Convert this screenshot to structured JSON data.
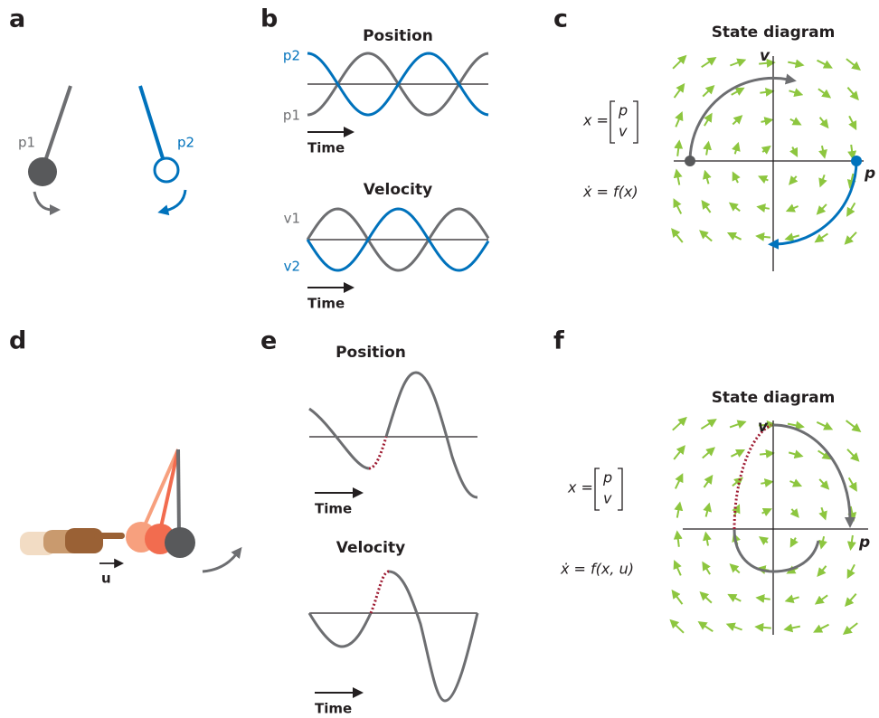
{
  "panels": {
    "a": {
      "label": "a",
      "pendulum_1": "p1",
      "pendulum_2": "p2"
    },
    "b": {
      "label": "b",
      "position": {
        "title": "Position",
        "top": "p2",
        "bottom": "p1",
        "time": "Time"
      },
      "velocity": {
        "title": "Velocity",
        "top": "v1",
        "bottom": "v2",
        "time": "Time"
      }
    },
    "c": {
      "label": "c",
      "title": "State diagram",
      "v_axis": "v",
      "p_axis": "p",
      "state_lhs": "x =",
      "state_top": "p",
      "state_bottom": "v",
      "dynamics": "ẋ = f(x)"
    },
    "d": {
      "label": "d",
      "input": "u"
    },
    "e": {
      "label": "e",
      "position": {
        "title": "Position",
        "time": "Time"
      },
      "velocity": {
        "title": "Velocity",
        "time": "Time"
      }
    },
    "f": {
      "label": "f",
      "title": "State diagram",
      "v_axis": "v",
      "p_axis": "p",
      "state_lhs": "x =",
      "state_top": "p",
      "state_bottom": "v",
      "dynamics": "ẋ = f(x, u)"
    }
  }
}
